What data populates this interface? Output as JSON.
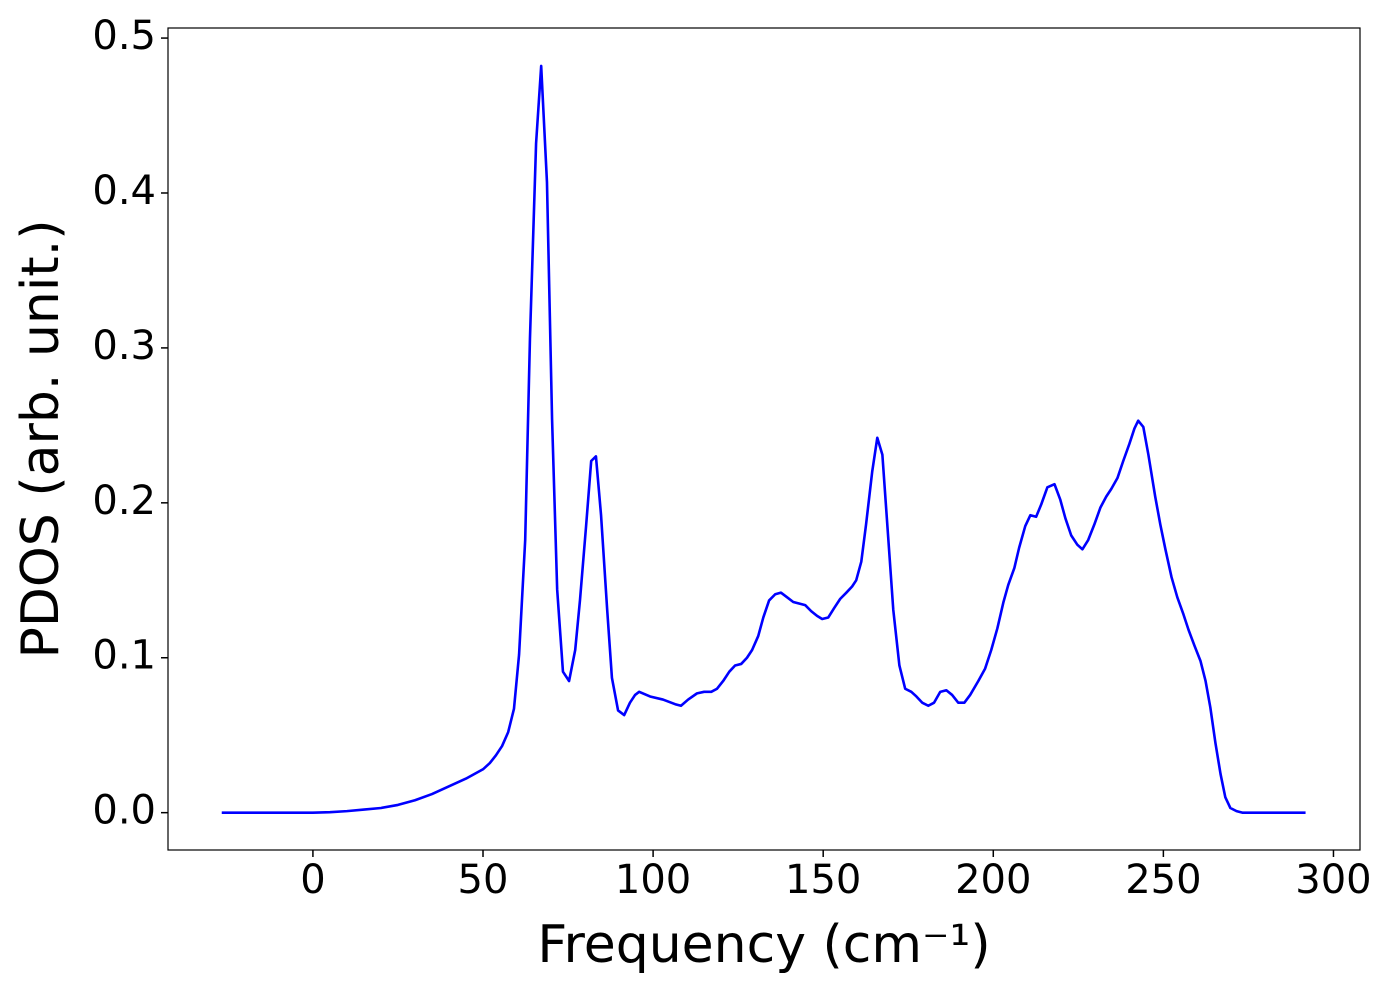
{
  "chart_data": {
    "type": "line",
    "xlabel": "Frequency (cm⁻¹)",
    "ylabel": "PDOS (arb. unit.)",
    "xlim": [
      -42.6,
      307.8
    ],
    "ylim": [
      -0.0241,
      0.5065
    ],
    "xticks": [
      0,
      50,
      100,
      150,
      200,
      250,
      300
    ],
    "yticks": [
      {
        "value": 0,
        "label": "0.0"
      },
      0.1,
      0.2,
      0.3,
      0.4,
      0.5
    ],
    "series": [
      {
        "color": "#0000ff",
        "x": [
          -26.8,
          -10,
          0,
          5,
          10,
          15,
          20,
          25,
          30,
          35,
          40,
          45,
          50,
          52,
          53.8,
          55.6,
          57.4,
          59.1,
          60.6,
          62.4,
          63.8,
          65.6,
          67.1,
          68.8,
          70.3,
          71.8,
          73.5,
          75.3,
          77.1,
          78.5,
          80.3,
          81.8,
          83.2,
          84.7,
          86.5,
          87.9,
          89.7,
          91.5,
          93.2,
          94.7,
          95.9,
          99.1,
          102.9,
          106.5,
          108.2,
          110.3,
          112.9,
          115,
          117.1,
          118.8,
          120.6,
          122.4,
          124.1,
          125.9,
          127.6,
          129.1,
          130.9,
          132.4,
          134.1,
          135.9,
          137.6,
          139.4,
          141.2,
          142.9,
          144.7,
          146.5,
          148.2,
          149.7,
          151.5,
          153.2,
          155,
          156.8,
          158.5,
          159.7,
          161.2,
          162.6,
          164.4,
          165.9,
          167.4,
          169.1,
          170.6,
          172.4,
          174.1,
          175.9,
          177.4,
          179.1,
          180.9,
          182.6,
          184.4,
          186.2,
          187.9,
          189.7,
          191.5,
          193.2,
          195.6,
          197.6,
          199.4,
          201.2,
          203,
          204.4,
          206.2,
          207.6,
          209.4,
          210.9,
          212.6,
          214.1,
          215.9,
          218,
          219.7,
          221.2,
          222.9,
          224.7,
          226.2,
          227.9,
          229.7,
          231.5,
          233.2,
          234.7,
          236.5,
          238.2,
          240,
          241.5,
          242.6,
          244.1,
          245.6,
          247.6,
          249.1,
          250.6,
          252.4,
          254.1,
          255.9,
          257.4,
          259.1,
          260.9,
          262.4,
          263.8,
          265.3,
          266.8,
          268.2,
          269.7,
          271.5,
          273.2,
          291.8
        ],
        "values": [
          0,
          0,
          0,
          0.0003,
          0.001,
          0.002,
          0.003,
          0.005,
          0.008,
          0.012,
          0.017,
          0.022,
          0.028,
          0.032,
          0.037,
          0.043,
          0.052,
          0.067,
          0.102,
          0.176,
          0.306,
          0.432,
          0.482,
          0.407,
          0.254,
          0.144,
          0.091,
          0.085,
          0.105,
          0.137,
          0.185,
          0.227,
          0.23,
          0.192,
          0.131,
          0.087,
          0.066,
          0.063,
          0.071,
          0.076,
          0.078,
          0.075,
          0.073,
          0.07,
          0.069,
          0.073,
          0.077,
          0.078,
          0.078,
          0.08,
          0.085,
          0.091,
          0.095,
          0.096,
          0.1,
          0.105,
          0.114,
          0.126,
          0.137,
          0.141,
          0.142,
          0.139,
          0.136,
          0.135,
          0.134,
          0.13,
          0.127,
          0.125,
          0.126,
          0.132,
          0.138,
          0.142,
          0.146,
          0.15,
          0.162,
          0.186,
          0.22,
          0.242,
          0.231,
          0.178,
          0.131,
          0.095,
          0.08,
          0.078,
          0.075,
          0.071,
          0.069,
          0.071,
          0.078,
          0.079,
          0.076,
          0.071,
          0.071,
          0.076,
          0.085,
          0.093,
          0.105,
          0.119,
          0.136,
          0.147,
          0.158,
          0.171,
          0.185,
          0.192,
          0.191,
          0.199,
          0.21,
          0.212,
          0.202,
          0.19,
          0.179,
          0.173,
          0.17,
          0.176,
          0.186,
          0.197,
          0.204,
          0.209,
          0.216,
          0.227,
          0.238,
          0.248,
          0.253,
          0.249,
          0.231,
          0.204,
          0.186,
          0.17,
          0.152,
          0.139,
          0.128,
          0.118,
          0.108,
          0.098,
          0.085,
          0.068,
          0.045,
          0.025,
          0.01,
          0.003,
          0.001,
          0,
          0
        ]
      }
    ]
  }
}
